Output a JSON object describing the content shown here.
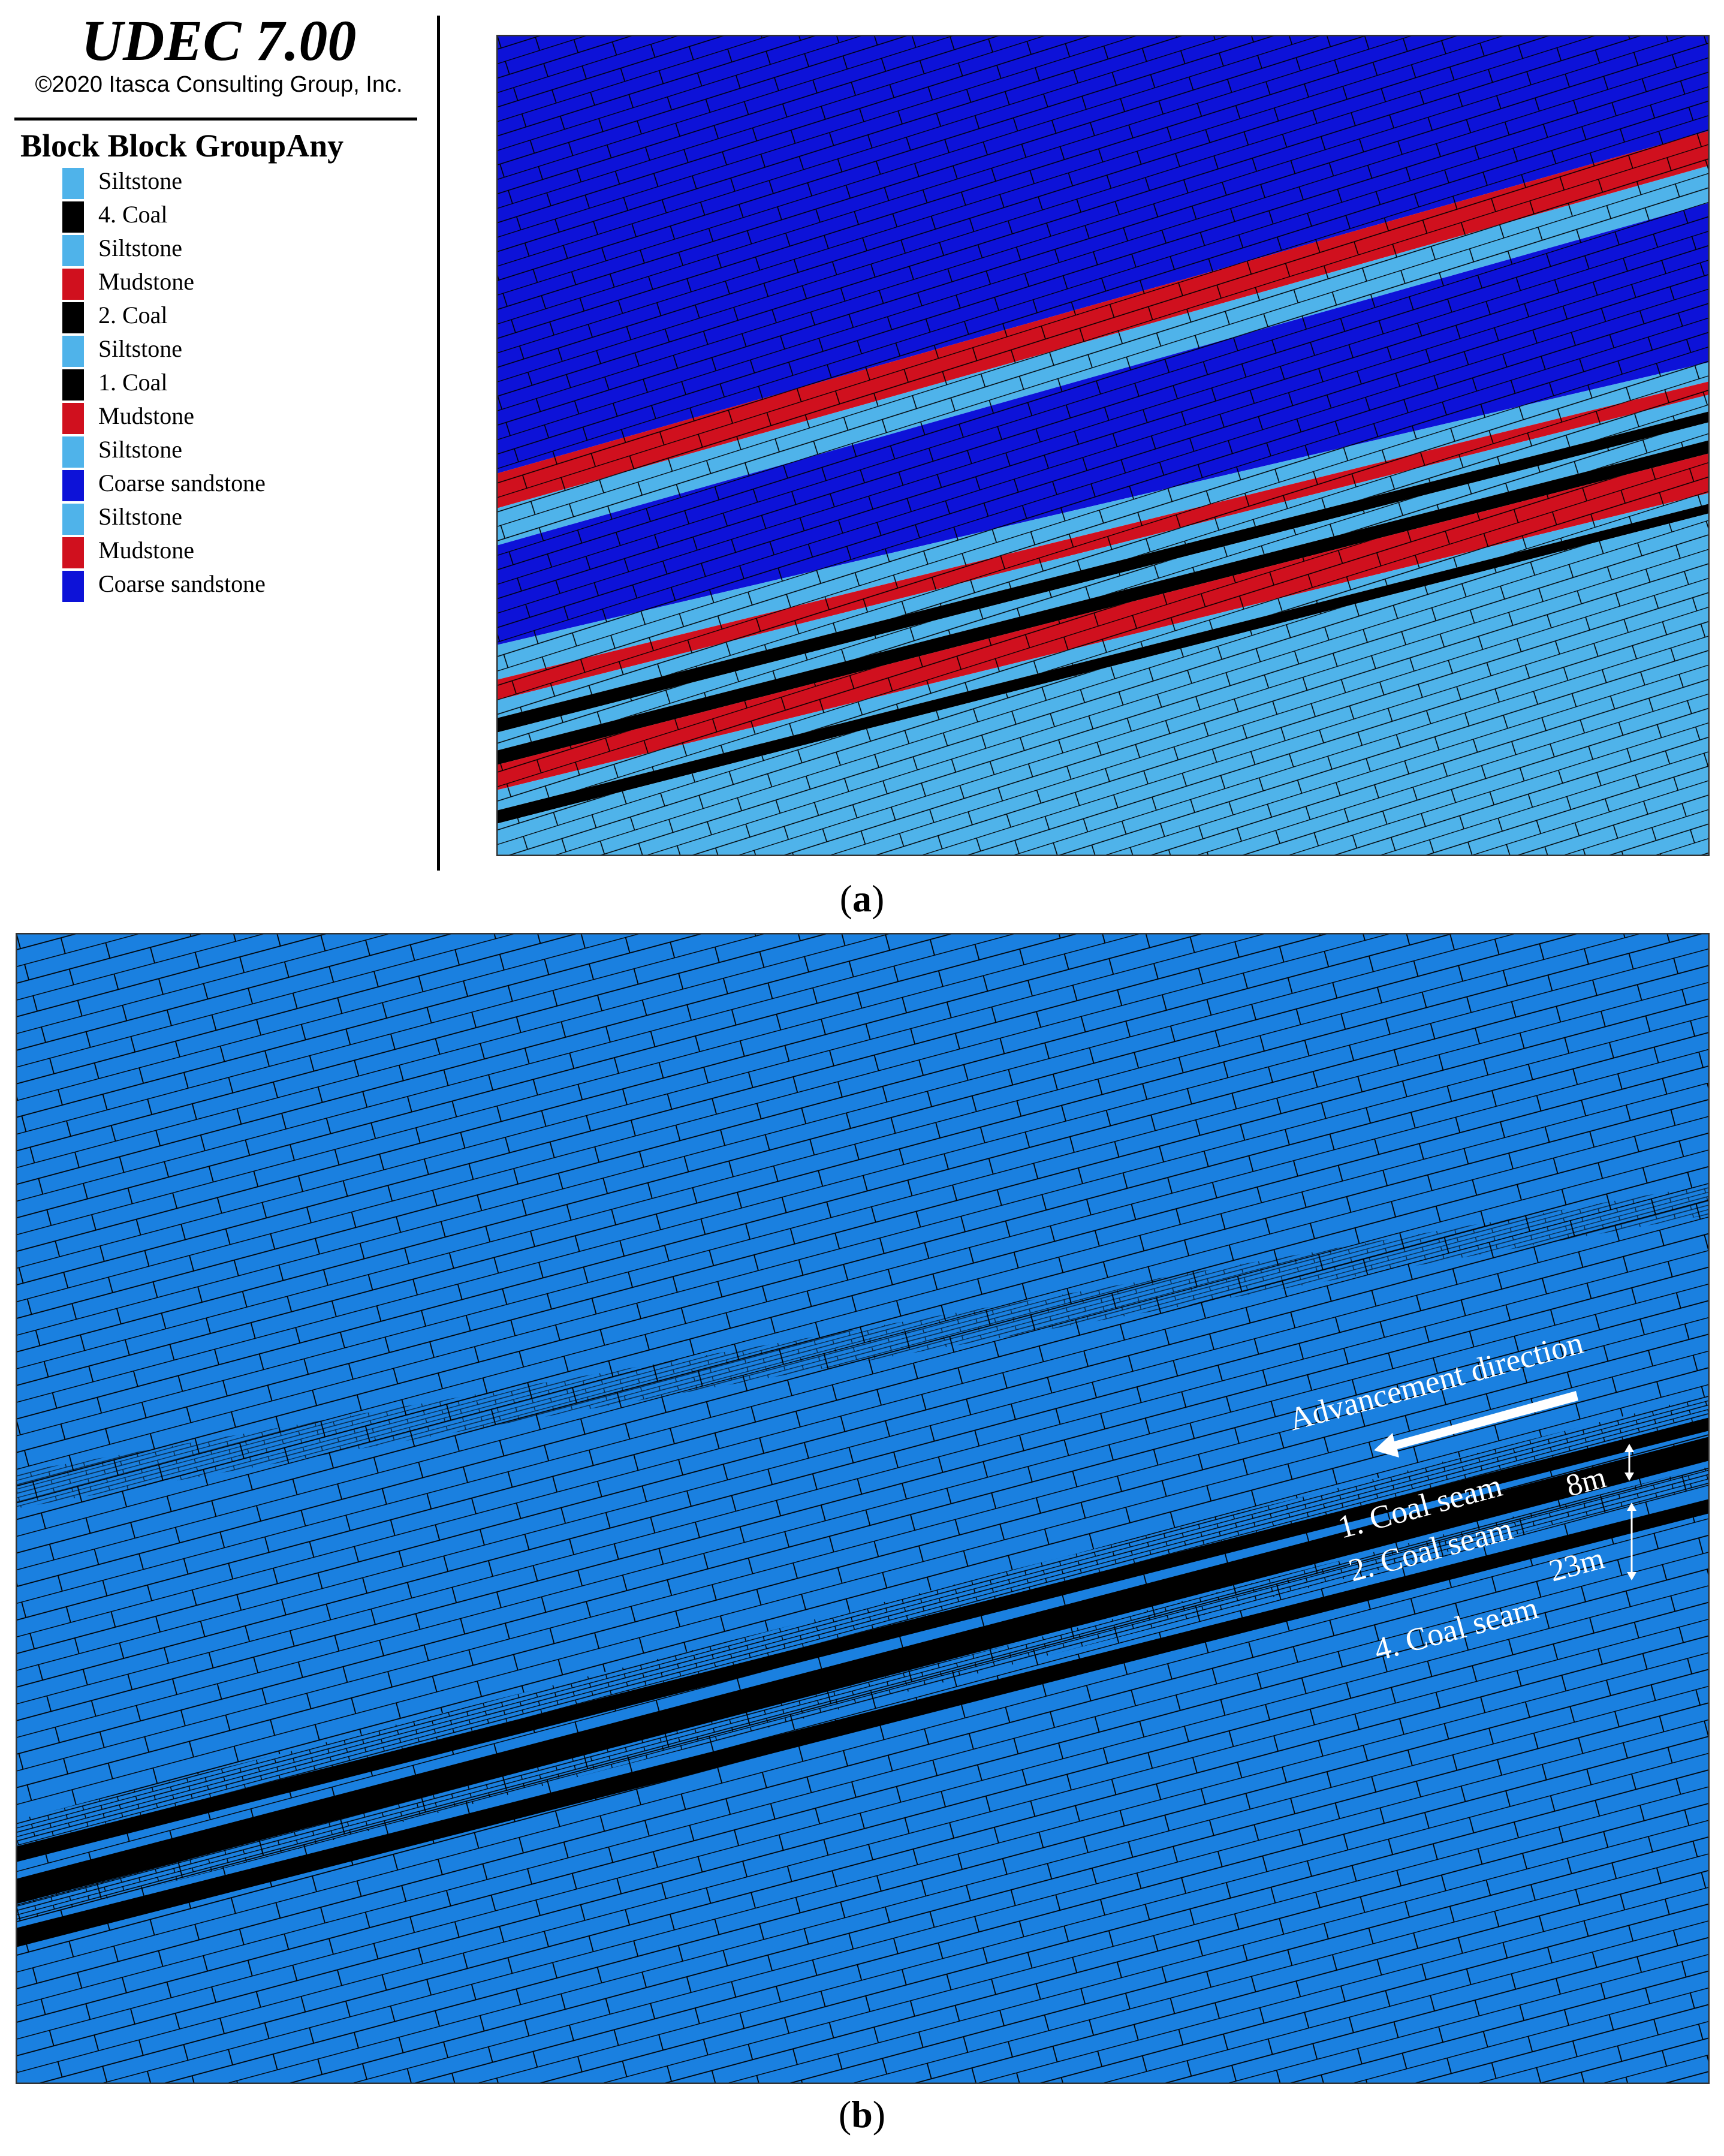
{
  "header": {
    "software_title": "UDEC 7.00",
    "copyright": "©2020 Itasca Consulting Group, Inc."
  },
  "legend": {
    "title": "Block Block GroupAny",
    "items": [
      {
        "label": "Siltstone",
        "color": "#4fb3ea"
      },
      {
        "label": "4. Coal",
        "color": "#000000"
      },
      {
        "label": "Siltstone",
        "color": "#4fb3ea"
      },
      {
        "label": "Mudstone",
        "color": "#d0101e"
      },
      {
        "label": "2. Coal",
        "color": "#000000"
      },
      {
        "label": "Siltstone",
        "color": "#4fb3ea"
      },
      {
        "label": "1. Coal",
        "color": "#000000"
      },
      {
        "label": "Mudstone",
        "color": "#d0101e"
      },
      {
        "label": "Siltstone",
        "color": "#4fb3ea"
      },
      {
        "label": "Coarse sandstone",
        "color": "#0d12d8"
      },
      {
        "label": "Siltstone",
        "color": "#4fb3ea"
      },
      {
        "label": "Mudstone",
        "color": "#d0101e"
      },
      {
        "label": "Coarse sandstone",
        "color": "#0d12d8"
      }
    ]
  },
  "captions": {
    "a_letter": "a",
    "b_letter": "b"
  },
  "panel_b": {
    "background_color": "#1a80e0",
    "advancement_label": "Advancement direction",
    "seam_labels": [
      "1. Coal seam",
      "2. Coal seam",
      "4. Coal seam"
    ],
    "spacing_labels": [
      "8m",
      "23m"
    ]
  }
}
